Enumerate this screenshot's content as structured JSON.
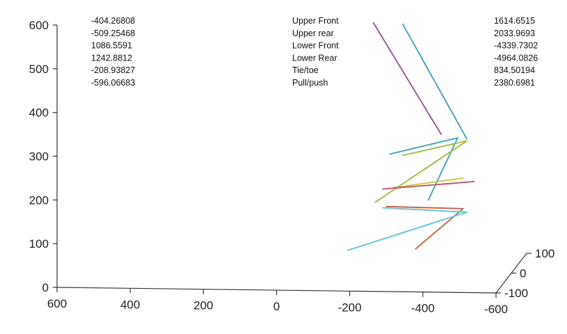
{
  "chart_data": {
    "type": "line",
    "title": "",
    "xlabel": "",
    "ylabel": "",
    "xlim": [
      600,
      -600
    ],
    "ylim": [
      0,
      600
    ],
    "zlim": [
      -100,
      100
    ],
    "grid": false,
    "legend": "none",
    "x_ticks": [
      "600",
      "400",
      "200",
      "0",
      "-200",
      "-400",
      "-600"
    ],
    "x_tick_values": [
      600,
      400,
      200,
      0,
      -200,
      -400,
      -600
    ],
    "y_ticks": [
      "0",
      "100",
      "200",
      "300",
      "400",
      "500",
      "600"
    ],
    "y_tick_values": [
      0,
      100,
      200,
      300,
      400,
      500,
      600
    ],
    "z_ticks": [
      "100",
      "0",
      "-100"
    ],
    "z_tick_values": [
      100,
      0,
      -100
    ],
    "segments": [
      {
        "color": "#9b4aa0",
        "points": [
          [
            -450,
            350
          ],
          [
            -265,
            605
          ]
        ]
      },
      {
        "color": "#2fa3cc",
        "points": [
          [
            -495,
            342
          ],
          [
            -310,
            305
          ]
        ]
      },
      {
        "color": "#2fa3cc",
        "points": [
          [
            -495,
            342
          ],
          [
            -415,
            200
          ]
        ]
      },
      {
        "color": "#d8c21e",
        "points": [
          [
            -510,
            250
          ],
          [
            -320,
            228
          ]
        ]
      },
      {
        "color": "#e2562c",
        "points": [
          [
            -510,
            180
          ],
          [
            -300,
            185
          ]
        ]
      },
      {
        "color": "#e2562c",
        "points": [
          [
            -510,
            180
          ],
          [
            -380,
            88
          ]
        ]
      },
      {
        "color": "#2fa3cc",
        "points": [
          [
            -345,
            602
          ],
          [
            -520,
            340
          ]
        ]
      },
      {
        "color": "#9bbd2a",
        "points": [
          [
            -345,
            302
          ],
          [
            -520,
            335
          ]
        ]
      },
      {
        "color": "#9bbd2a",
        "points": [
          [
            -270,
            195
          ],
          [
            -520,
            335
          ]
        ]
      },
      {
        "color": "#d0416e",
        "points": [
          [
            -290,
            225
          ],
          [
            -540,
            242
          ]
        ]
      },
      {
        "color": "#4ccae6",
        "points": [
          [
            -290,
            182
          ],
          [
            -520,
            172
          ]
        ]
      },
      {
        "color": "#4ccae6",
        "points": [
          [
            -195,
            85
          ],
          [
            -520,
            172
          ]
        ]
      }
    ],
    "annotations": {
      "left_values": [
        "-404.26808",
        "-509.25468",
        "1086.5591",
        "1242.8812",
        "-208.93827",
        "-596.06683"
      ],
      "labels": [
        "Upper Front",
        "Upper rear",
        "Lower Front",
        "Lower Rear",
        "Tie/toe",
        "Pull/push"
      ],
      "right_values": [
        "1614.6515",
        "2033.9693",
        "-4339.7302",
        "-4964.0826",
        "834.50194",
        "2380.6981"
      ]
    }
  }
}
